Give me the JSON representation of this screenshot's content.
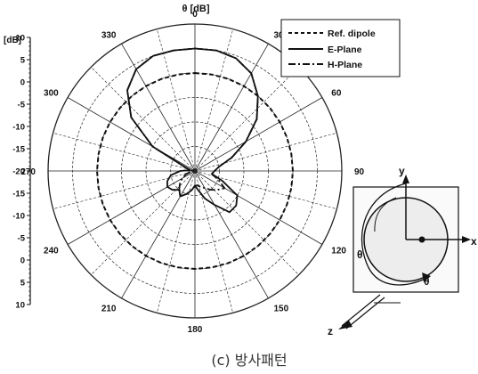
{
  "chart_data": {
    "type": "polar-line",
    "title": "θ [dB]",
    "ylabel": "[dB]",
    "radial_scale": {
      "ticks_top_down": [
        10,
        5,
        0,
        -5,
        -10,
        -15,
        -20,
        -15,
        -10,
        -5,
        0,
        5,
        10
      ],
      "labels": [
        "10",
        "5",
        "0",
        "-5",
        "-10",
        "-15",
        "-20",
        "-15",
        "-10",
        "-5",
        "0",
        "5",
        "10"
      ],
      "range": [
        -20,
        10
      ]
    },
    "angle_ticks": [
      "0",
      "30",
      "60",
      "90",
      "120",
      "150",
      "180",
      "210",
      "240",
      "270",
      "300",
      "330"
    ],
    "angle_values": [
      0,
      30,
      60,
      90,
      120,
      150,
      180,
      210,
      240,
      270,
      300,
      330
    ],
    "grid": true,
    "legend": [
      "Ref. dipole",
      "E-Plane",
      "H-Plane"
    ],
    "series": [
      {
        "name": "Ref. dipole",
        "style": "dashed",
        "theta_deg": [
          0,
          10,
          20,
          30,
          40,
          50,
          60,
          70,
          80,
          90,
          100,
          110,
          120,
          130,
          140,
          150,
          160,
          170,
          180,
          190,
          200,
          210,
          220,
          230,
          240,
          250,
          260,
          270,
          280,
          290,
          300,
          310,
          320,
          330,
          340,
          350,
          360
        ],
        "r_db": [
          0,
          0,
          0,
          0,
          0,
          0,
          0,
          0,
          0,
          0,
          0,
          0,
          0,
          0,
          0,
          0,
          0,
          0,
          0,
          0,
          0,
          0,
          0,
          0,
          0,
          0,
          0,
          0,
          0,
          0,
          0,
          0,
          0,
          0,
          0,
          0,
          0
        ]
      },
      {
        "name": "E-Plane",
        "style": "solid",
        "theta_deg": [
          0,
          10,
          20,
          30,
          40,
          50,
          60,
          70,
          80,
          90,
          100,
          110,
          120,
          130,
          140,
          150,
          160,
          170,
          180,
          190,
          200,
          210,
          220,
          230,
          240,
          250,
          260,
          270,
          280,
          290,
          300,
          310,
          320,
          330,
          340,
          350,
          360
        ],
        "r_db": [
          5,
          5,
          4.5,
          3,
          0,
          -3.5,
          -8,
          -12,
          -15,
          -16,
          -16.5,
          -14,
          -10,
          -9,
          -9,
          -12,
          -14,
          -16,
          -17,
          -16,
          -15,
          -14,
          -15,
          -14,
          -13.5,
          -14,
          -15,
          -17,
          -19,
          -18,
          -10,
          -3,
          1.5,
          4,
          5,
          5,
          5
        ]
      },
      {
        "name": "H-Plane",
        "style": "dash-dot",
        "theta_deg": [
          0,
          10,
          20,
          30,
          40,
          50,
          60,
          70,
          80,
          90,
          100,
          110,
          120,
          130,
          140,
          150,
          160,
          170,
          180,
          190,
          200,
          210,
          220,
          230,
          240,
          250,
          260,
          270,
          280,
          290,
          300,
          310,
          320,
          330,
          340,
          350,
          360
        ],
        "r_db": [
          5,
          5,
          4.5,
          3,
          0,
          -3.5,
          -8,
          -12,
          -15,
          -16,
          -16.5,
          -15,
          -13,
          -14,
          -15,
          -16,
          -16.5,
          -17,
          -17,
          -16,
          -15,
          -14,
          -15,
          -16,
          -17,
          -18,
          -19,
          -19.5,
          -19,
          -18,
          -10,
          -3,
          1.5,
          4,
          5,
          5,
          5
        ]
      }
    ]
  },
  "inset": {
    "axis_x": "x",
    "axis_y": "y",
    "axis_z": "z",
    "theta_left": "θ",
    "theta_bottom": "θ"
  },
  "caption": "(c) 방사패턴"
}
